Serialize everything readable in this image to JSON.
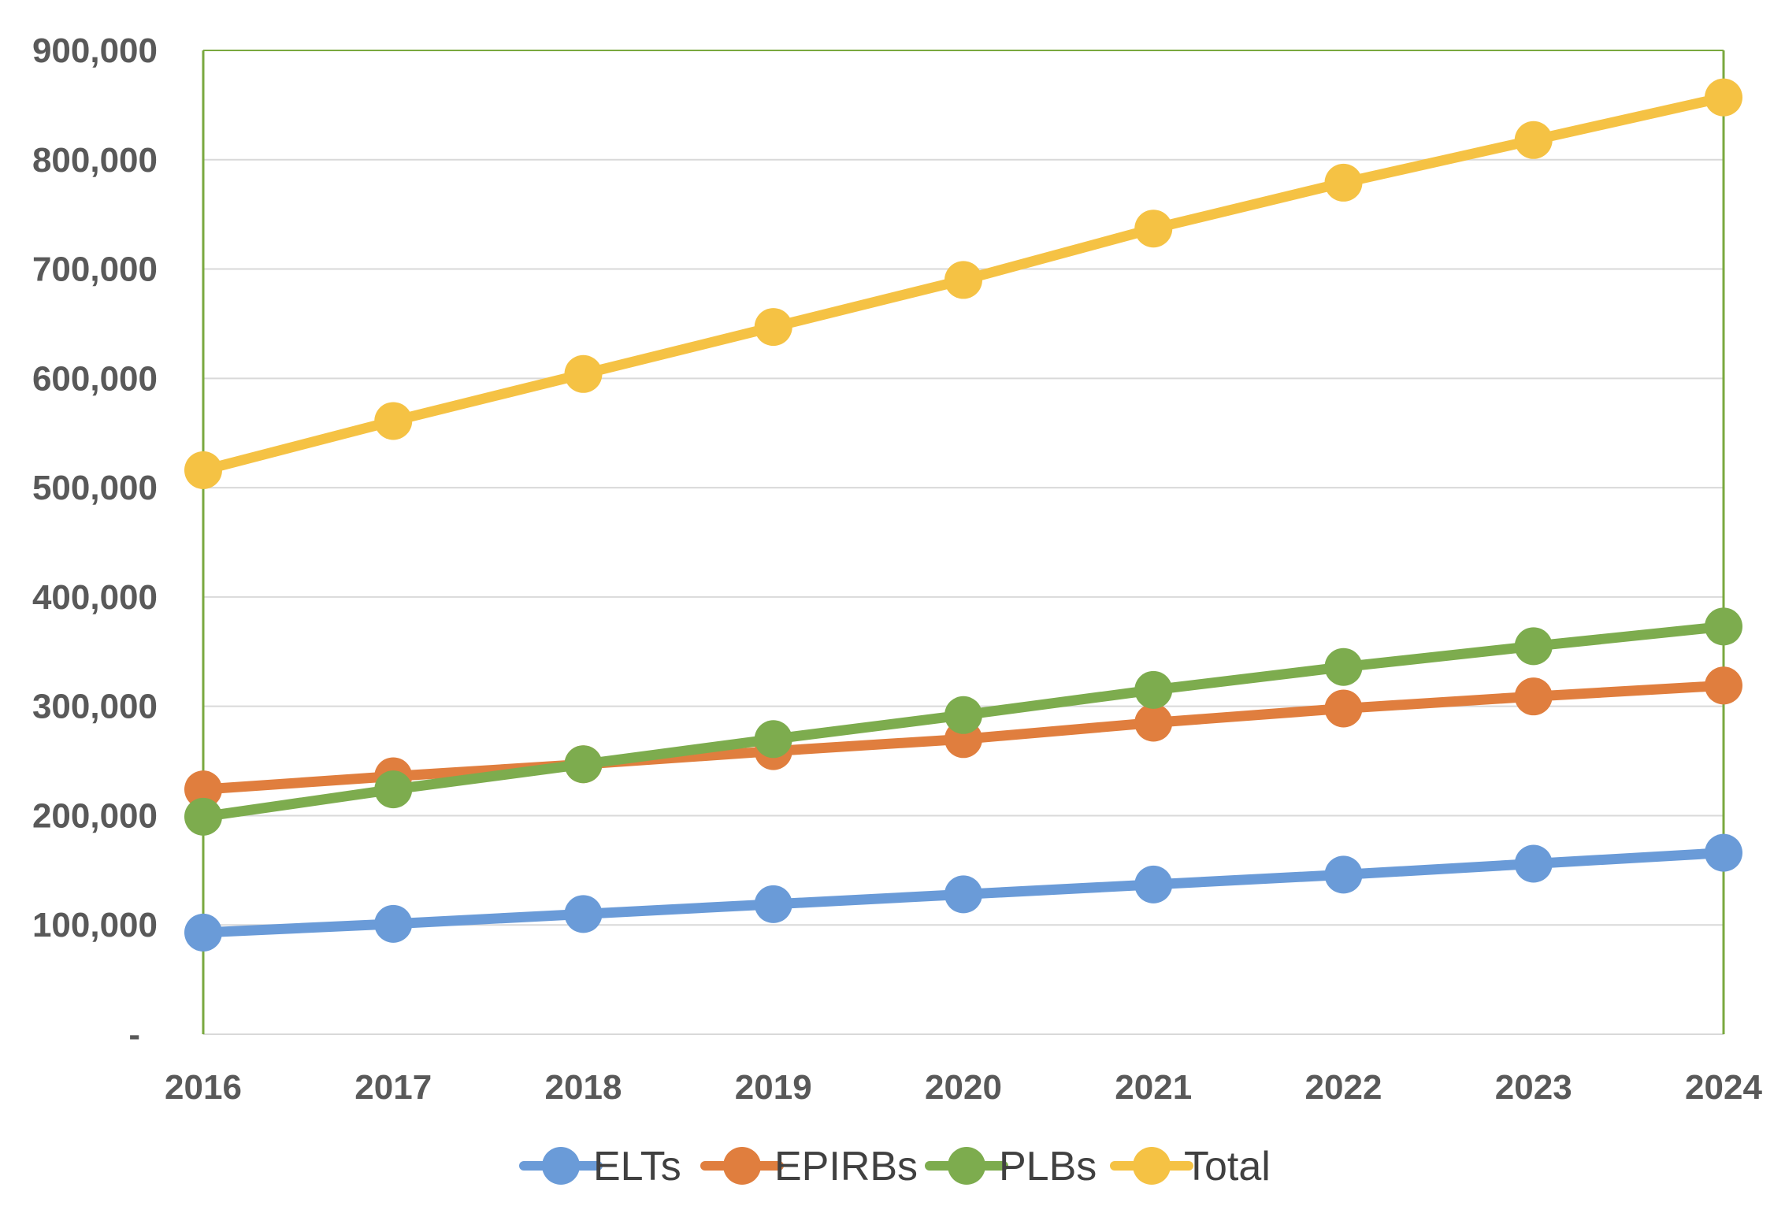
{
  "chart_data": {
    "type": "line",
    "x": [
      "2016",
      "2017",
      "2018",
      "2019",
      "2020",
      "2021",
      "2022",
      "2023",
      "2024"
    ],
    "series": [
      {
        "name": "ELTs",
        "color": "#6a9bd8",
        "values": [
          93000,
          101000,
          110000,
          119000,
          128000,
          137000,
          146000,
          156000,
          166000
        ]
      },
      {
        "name": "EPIRBs",
        "color": "#e07e3e",
        "values": [
          224000,
          236000,
          247000,
          259000,
          270000,
          285000,
          298000,
          309000,
          319000
        ]
      },
      {
        "name": "PLBs",
        "color": "#7dac4e",
        "values": [
          199000,
          224000,
          247000,
          270000,
          292000,
          315000,
          336000,
          355000,
          373000
        ]
      },
      {
        "name": "Total",
        "color": "#f5c244",
        "values": [
          516000,
          561000,
          604000,
          647000,
          690000,
          737000,
          779000,
          818000,
          857000
        ]
      }
    ],
    "y_ticks": [
      {
        "value": 0,
        "label": "-"
      },
      {
        "value": 100000,
        "label": "100,000"
      },
      {
        "value": 200000,
        "label": "200,000"
      },
      {
        "value": 300000,
        "label": "300,000"
      },
      {
        "value": 400000,
        "label": "400,000"
      },
      {
        "value": 500000,
        "label": "500,000"
      },
      {
        "value": 600000,
        "label": "600,000"
      },
      {
        "value": 700000,
        "label": "700,000"
      },
      {
        "value": 800000,
        "label": "800,000"
      },
      {
        "value": 900000,
        "label": "900,000"
      }
    ],
    "ylim": [
      0,
      900000
    ],
    "grid": true,
    "legend_position": "bottom",
    "gridline_color": "#d9d9d9",
    "plot_border_color": "#7aa83f"
  }
}
